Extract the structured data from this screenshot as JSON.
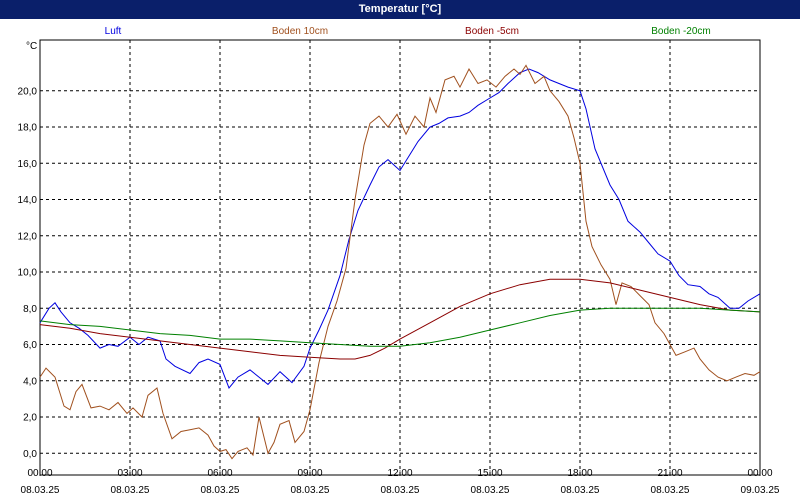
{
  "window": {
    "title": "Temperatur [°C]"
  },
  "chart_data": {
    "type": "line",
    "title": "Temperatur [°C]",
    "ylabel": "°C",
    "ylim": [
      -1.2,
      22.8
    ],
    "xlim_hours": [
      0,
      24
    ],
    "grid": true,
    "legend_position": "top",
    "y_ticks": [
      "0,0",
      "2,0",
      "4,0",
      "6,0",
      "8,0",
      "10,0",
      "12,0",
      "14,0",
      "16,0",
      "18,0",
      "20,0"
    ],
    "x_ticks": [
      {
        "time": "00:00",
        "date": "08.03.25"
      },
      {
        "time": "03:00",
        "date": "08.03.25"
      },
      {
        "time": "06:00",
        "date": "08.03.25"
      },
      {
        "time": "09:00",
        "date": "08.03.25"
      },
      {
        "time": "12:00",
        "date": "08.03.25"
      },
      {
        "time": "15:00",
        "date": "08.03.25"
      },
      {
        "time": "18:00",
        "date": "08.03.25"
      },
      {
        "time": "21:00",
        "date": "08.03.25"
      },
      {
        "time": "00:00",
        "date": "09.03.25"
      }
    ],
    "series": [
      {
        "name": "Luft",
        "color": "#0000e0",
        "points": [
          [
            0,
            7.2
          ],
          [
            0.3,
            8.0
          ],
          [
            0.5,
            8.3
          ],
          [
            0.7,
            7.8
          ],
          [
            1,
            7.2
          ],
          [
            1.3,
            6.9
          ],
          [
            1.6,
            6.5
          ],
          [
            2,
            5.8
          ],
          [
            2.3,
            6.0
          ],
          [
            2.6,
            5.9
          ],
          [
            3,
            6.4
          ],
          [
            3.3,
            6.0
          ],
          [
            3.6,
            6.4
          ],
          [
            4,
            6.2
          ],
          [
            4.2,
            5.2
          ],
          [
            4.5,
            4.8
          ],
          [
            5,
            4.4
          ],
          [
            5.3,
            5.0
          ],
          [
            5.6,
            5.2
          ],
          [
            6,
            4.9
          ],
          [
            6.3,
            3.6
          ],
          [
            6.6,
            4.2
          ],
          [
            7,
            4.6
          ],
          [
            7.3,
            4.2
          ],
          [
            7.6,
            3.8
          ],
          [
            8,
            4.5
          ],
          [
            8.4,
            3.9
          ],
          [
            8.8,
            4.8
          ],
          [
            9,
            5.8
          ],
          [
            9.3,
            6.8
          ],
          [
            9.6,
            7.9
          ],
          [
            10,
            9.8
          ],
          [
            10.3,
            11.8
          ],
          [
            10.6,
            13.4
          ],
          [
            11,
            14.8
          ],
          [
            11.3,
            15.8
          ],
          [
            11.6,
            16.2
          ],
          [
            12,
            15.6
          ],
          [
            12.3,
            16.4
          ],
          [
            12.6,
            17.2
          ],
          [
            13,
            18.0
          ],
          [
            13.3,
            18.2
          ],
          [
            13.6,
            18.5
          ],
          [
            14,
            18.6
          ],
          [
            14.3,
            18.8
          ],
          [
            14.6,
            19.2
          ],
          [
            15,
            19.6
          ],
          [
            15.3,
            19.9
          ],
          [
            15.6,
            20.4
          ],
          [
            16,
            21.0
          ],
          [
            16.3,
            21.2
          ],
          [
            16.6,
            21.0
          ],
          [
            17,
            20.6
          ],
          [
            17.3,
            20.4
          ],
          [
            17.6,
            20.2
          ],
          [
            18,
            20.0
          ],
          [
            18.2,
            19.0
          ],
          [
            18.5,
            16.8
          ],
          [
            19,
            14.8
          ],
          [
            19.3,
            14.0
          ],
          [
            19.6,
            12.8
          ],
          [
            20,
            12.2
          ],
          [
            20.3,
            11.6
          ],
          [
            20.6,
            11.0
          ],
          [
            21,
            10.6
          ],
          [
            21.3,
            9.8
          ],
          [
            21.6,
            9.3
          ],
          [
            22,
            9.2
          ],
          [
            22.3,
            8.8
          ],
          [
            22.6,
            8.6
          ],
          [
            23,
            8.0
          ],
          [
            23.3,
            8.0
          ],
          [
            23.6,
            8.4
          ],
          [
            24,
            8.8
          ]
        ]
      },
      {
        "name": "Boden 10cm",
        "color": "#a0501e",
        "points": [
          [
            0,
            4.2
          ],
          [
            0.2,
            4.7
          ],
          [
            0.5,
            4.2
          ],
          [
            0.8,
            2.6
          ],
          [
            1,
            2.4
          ],
          [
            1.2,
            3.4
          ],
          [
            1.4,
            3.8
          ],
          [
            1.7,
            2.5
          ],
          [
            2,
            2.6
          ],
          [
            2.3,
            2.4
          ],
          [
            2.6,
            2.8
          ],
          [
            2.9,
            2.2
          ],
          [
            3.1,
            2.5
          ],
          [
            3.4,
            2.0
          ],
          [
            3.6,
            3.2
          ],
          [
            3.9,
            3.6
          ],
          [
            4.1,
            2.2
          ],
          [
            4.4,
            0.8
          ],
          [
            4.7,
            1.2
          ],
          [
            5,
            1.3
          ],
          [
            5.3,
            1.4
          ],
          [
            5.6,
            1.0
          ],
          [
            5.8,
            0.4
          ],
          [
            6,
            0.1
          ],
          [
            6.2,
            0.2
          ],
          [
            6.4,
            -0.3
          ],
          [
            6.6,
            0.1
          ],
          [
            6.9,
            0.3
          ],
          [
            7.1,
            -0.1
          ],
          [
            7.3,
            2.0
          ],
          [
            7.6,
            0.0
          ],
          [
            7.8,
            0.6
          ],
          [
            8,
            1.6
          ],
          [
            8.3,
            1.8
          ],
          [
            8.5,
            0.6
          ],
          [
            8.8,
            1.2
          ],
          [
            9,
            2.4
          ],
          [
            9.3,
            5.0
          ],
          [
            9.6,
            7.0
          ],
          [
            9.9,
            8.4
          ],
          [
            10.2,
            10.2
          ],
          [
            10.5,
            14.0
          ],
          [
            10.8,
            17.0
          ],
          [
            11,
            18.2
          ],
          [
            11.3,
            18.6
          ],
          [
            11.6,
            18.0
          ],
          [
            11.9,
            18.7
          ],
          [
            12.2,
            17.6
          ],
          [
            12.5,
            18.6
          ],
          [
            12.8,
            18.0
          ],
          [
            13,
            19.6
          ],
          [
            13.2,
            18.8
          ],
          [
            13.5,
            20.6
          ],
          [
            13.8,
            20.8
          ],
          [
            14,
            20.2
          ],
          [
            14.3,
            21.2
          ],
          [
            14.6,
            20.4
          ],
          [
            14.9,
            20.6
          ],
          [
            15.2,
            20.2
          ],
          [
            15.5,
            20.8
          ],
          [
            15.8,
            21.2
          ],
          [
            16,
            20.9
          ],
          [
            16.2,
            21.4
          ],
          [
            16.5,
            20.4
          ],
          [
            16.8,
            20.8
          ],
          [
            17,
            20.0
          ],
          [
            17.3,
            19.4
          ],
          [
            17.6,
            18.6
          ],
          [
            17.8,
            17.4
          ],
          [
            18,
            16.0
          ],
          [
            18.2,
            12.8
          ],
          [
            18.4,
            11.4
          ],
          [
            18.7,
            10.4
          ],
          [
            19,
            9.6
          ],
          [
            19.2,
            8.2
          ],
          [
            19.4,
            9.4
          ],
          [
            19.7,
            9.2
          ],
          [
            20,
            8.7
          ],
          [
            20.3,
            8.2
          ],
          [
            20.5,
            7.2
          ],
          [
            20.8,
            6.6
          ],
          [
            21,
            6.0
          ],
          [
            21.2,
            5.4
          ],
          [
            21.5,
            5.6
          ],
          [
            21.8,
            5.8
          ],
          [
            22,
            5.2
          ],
          [
            22.3,
            4.6
          ],
          [
            22.6,
            4.2
          ],
          [
            22.9,
            4.0
          ],
          [
            23.2,
            4.2
          ],
          [
            23.5,
            4.4
          ],
          [
            23.8,
            4.3
          ],
          [
            24,
            4.5
          ]
        ]
      },
      {
        "name": "Boden -5cm",
        "color": "#8b0000",
        "points": [
          [
            0,
            7.1
          ],
          [
            1,
            6.9
          ],
          [
            2,
            6.6
          ],
          [
            3,
            6.4
          ],
          [
            4,
            6.2
          ],
          [
            5,
            6.0
          ],
          [
            6,
            5.8
          ],
          [
            7,
            5.6
          ],
          [
            8,
            5.4
          ],
          [
            9,
            5.3
          ],
          [
            10,
            5.2
          ],
          [
            10.5,
            5.2
          ],
          [
            11,
            5.4
          ],
          [
            11.5,
            5.8
          ],
          [
            12,
            6.3
          ],
          [
            13,
            7.2
          ],
          [
            14,
            8.1
          ],
          [
            15,
            8.8
          ],
          [
            16,
            9.3
          ],
          [
            17,
            9.6
          ],
          [
            18,
            9.6
          ],
          [
            19,
            9.4
          ],
          [
            20,
            9.0
          ],
          [
            21,
            8.6
          ],
          [
            22,
            8.2
          ],
          [
            23,
            7.9
          ],
          [
            24,
            7.8
          ]
        ]
      },
      {
        "name": "Boden -20cm",
        "color": "#008000",
        "points": [
          [
            0,
            7.3
          ],
          [
            1,
            7.1
          ],
          [
            2,
            7.0
          ],
          [
            3,
            6.8
          ],
          [
            4,
            6.6
          ],
          [
            5,
            6.5
          ],
          [
            6,
            6.3
          ],
          [
            7,
            6.3
          ],
          [
            8,
            6.2
          ],
          [
            9,
            6.1
          ],
          [
            10,
            6.0
          ],
          [
            11,
            5.9
          ],
          [
            12,
            5.9
          ],
          [
            13,
            6.1
          ],
          [
            14,
            6.4
          ],
          [
            15,
            6.8
          ],
          [
            16,
            7.2
          ],
          [
            17,
            7.6
          ],
          [
            18,
            7.9
          ],
          [
            19,
            8.0
          ],
          [
            20,
            8.0
          ],
          [
            21,
            8.0
          ],
          [
            22,
            8.0
          ],
          [
            23,
            7.9
          ],
          [
            24,
            7.8
          ]
        ]
      }
    ]
  }
}
